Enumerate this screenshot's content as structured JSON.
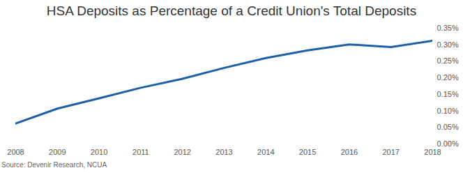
{
  "chart_data": {
    "type": "line",
    "title": "HSA Deposits as Percentage of a Credit Union's Total Deposits",
    "source": "Source: Devenir Research, NCUA",
    "x": [
      2008,
      2009,
      2010,
      2011,
      2012,
      2013,
      2014,
      2015,
      2016,
      2017,
      2018
    ],
    "values": [
      0.062,
      0.107,
      0.138,
      0.17,
      0.197,
      0.23,
      0.26,
      0.283,
      0.301,
      0.293,
      0.312
    ],
    "color": "#1f5fa8",
    "xlim": [
      2008,
      2018
    ],
    "xticks": [
      2008,
      2009,
      2010,
      2011,
      2012,
      2013,
      2014,
      2015,
      2016,
      2017,
      2018
    ],
    "ylim": [
      0,
      0.35
    ],
    "yticks": [
      {
        "value": 0,
        "label": "0.00%"
      },
      {
        "value": 0.05,
        "label": "0.05%"
      },
      {
        "value": 0.1,
        "label": "0.10%"
      },
      {
        "value": 0.15,
        "label": "0.15%"
      },
      {
        "value": 0.2,
        "label": "0.20%"
      },
      {
        "value": 0.25,
        "label": "0.25%"
      },
      {
        "value": 0.3,
        "label": "0.30%"
      },
      {
        "value": 0.35,
        "label": "0.35%"
      }
    ],
    "grid": false
  }
}
